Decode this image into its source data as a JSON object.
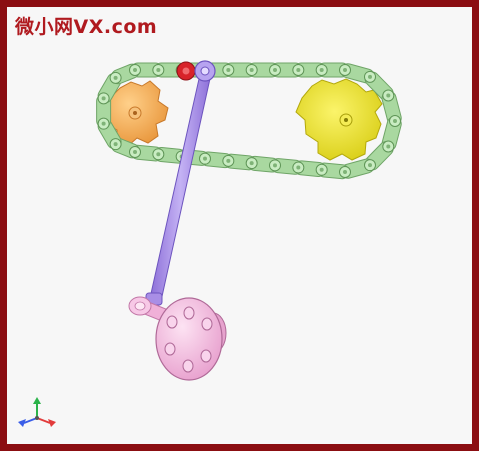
{
  "watermark": {
    "text": "微小网VX.com",
    "color": "#b01a1f"
  },
  "diagram": {
    "subject": "chain-drive-with-connecting-rod",
    "components": [
      {
        "id": "left-sprocket",
        "icon": "sprocket-icon",
        "color": "#f2a94e"
      },
      {
        "id": "right-sprocket",
        "icon": "sprocket-icon",
        "color": "#e8df2a"
      },
      {
        "id": "roller-chain",
        "icon": "chain-icon",
        "color": "#a9d8a0"
      },
      {
        "id": "chain-pin",
        "icon": "pin-icon",
        "color": "#d8232a"
      },
      {
        "id": "connecting-rod",
        "icon": "rod-icon",
        "color": "#a98ee6"
      },
      {
        "id": "crank-disc",
        "icon": "disc-icon",
        "color": "#f2b6dc"
      }
    ],
    "axis_triad": {
      "icon": "xyz-axis-icon",
      "colors": {
        "x": "#e23b3b",
        "y": "#2bb34a",
        "z": "#3a5ee8"
      }
    },
    "frame_color": "#8b0e12",
    "background": "#f7f7f7"
  }
}
